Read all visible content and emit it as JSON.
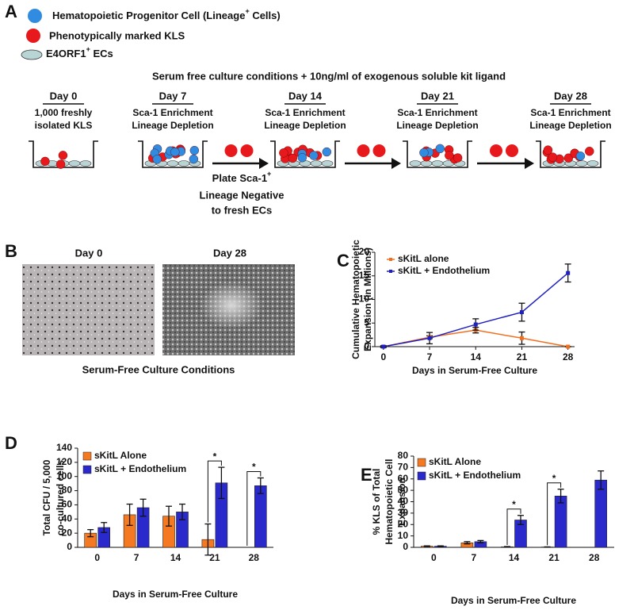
{
  "panel_a": {
    "label": "A",
    "legend": [
      {
        "text": "Hematopoietic Progenitor Cell (Lineage",
        "sup": "+",
        "tail": " Cells)"
      },
      {
        "text": "Phenotypically marked KLS"
      },
      {
        "text": "E4ORF1",
        "sup": "+",
        "tail": " ECs"
      }
    ],
    "title": "Serum free culture conditions + 10ng/ml of exogenous soluble kit ligand",
    "days": [
      {
        "day": "Day 0",
        "lines": [
          "1,000 freshly",
          "isolated KLS"
        ]
      },
      {
        "day": "Day 7",
        "lines": [
          "Sca-1 Enrichment",
          "Lineage Depletion"
        ]
      },
      {
        "day": "Day 14",
        "lines": [
          "Sca-1 Enrichment",
          "Lineage Depletion"
        ]
      },
      {
        "day": "Day 21",
        "lines": [
          "Sca-1 Enrichment",
          "Lineage Depletion"
        ]
      },
      {
        "day": "Day 28",
        "lines": [
          "Sca-1 Enrichment",
          "Lineage Depletion"
        ]
      }
    ],
    "plate_note": {
      "line1": "Plate Sca-1",
      "sup": "+",
      "line2": "Lineage Negative",
      "line3": "to fresh ECs"
    }
  },
  "panel_b": {
    "label": "B",
    "left": "Day 0",
    "right": "Day 28",
    "caption": "Serum-Free Culture Conditions"
  },
  "chart_data": [
    {
      "type": "line",
      "panel": "C",
      "ylabel": [
        "Cumulative Hematopoietic",
        "Expansion (in Millions)"
      ],
      "xlabel": "Days in Serum-Free Culture",
      "x": [
        0,
        7,
        14,
        21,
        28
      ],
      "xlim": [
        -1.3,
        29
      ],
      "xticks": [
        0,
        7,
        14,
        21,
        28
      ],
      "ylim": [
        0,
        20
      ],
      "yticks": [
        0,
        5,
        10,
        15,
        20
      ],
      "series": [
        {
          "name": "sKitL alone",
          "color": "#f07020",
          "values": [
            0,
            2.0,
            3.5,
            1.8,
            0
          ],
          "errors": [
            0,
            0.3,
            0.6,
            1.3,
            0
          ]
        },
        {
          "name": "sKitL + Endothelium",
          "color": "#2020c0",
          "values": [
            0,
            1.8,
            4.7,
            7.3,
            15.6
          ],
          "errors": [
            0.2,
            1.2,
            1.2,
            1.9,
            1.9
          ]
        }
      ]
    },
    {
      "type": "bar",
      "panel": "D",
      "ylabel": [
        "Total CFU / 5,000",
        "co-cultured  cells"
      ],
      "xlabel": "Days in Serum-Free Culture",
      "categories": [
        "0",
        "7",
        "14",
        "21",
        "28"
      ],
      "ylim": [
        0,
        140
      ],
      "yticks": [
        0,
        20,
        40,
        60,
        80,
        100,
        120,
        140
      ],
      "series": [
        {
          "name": "sKitL Alone",
          "color": "#f47920",
          "values": [
            20,
            46,
            44,
            11,
            null
          ],
          "errors": [
            5,
            15,
            14,
            22,
            null
          ]
        },
        {
          "name": "sKitL + Endothelium",
          "color": "#2a2acc",
          "values": [
            28,
            56,
            50,
            91,
            87
          ],
          "errors": [
            7,
            12,
            11,
            22,
            11
          ]
        }
      ],
      "annotations": [
        {
          "text": "*",
          "category": 3
        },
        {
          "text": "*",
          "category": 4
        }
      ]
    },
    {
      "type": "bar",
      "panel": "E",
      "ylabel": [
        "% KLS of  Total",
        "Hematopoietic Cell",
        "Expansion"
      ],
      "xlabel": "Days in Serum-Free Culture",
      "categories": [
        "0",
        "7",
        "14",
        "21",
        "28"
      ],
      "ylim": [
        0,
        80
      ],
      "yticks": [
        0,
        10,
        20,
        30,
        40,
        50,
        60,
        70,
        80
      ],
      "series": [
        {
          "name": "sKitL Alone",
          "color": "#f47920",
          "values": [
            1,
            4,
            0.5,
            0.3,
            null
          ],
          "errors": [
            0.3,
            1,
            0.2,
            0.1,
            null
          ]
        },
        {
          "name": "sKitL + Endothelium",
          "color": "#2a2acc",
          "values": [
            1,
            5,
            24,
            45,
            59
          ],
          "errors": [
            0.3,
            1,
            4,
            6,
            8
          ]
        }
      ],
      "annotations": [
        {
          "text": "*",
          "category": 2
        },
        {
          "text": "*",
          "category": 3
        }
      ]
    }
  ]
}
